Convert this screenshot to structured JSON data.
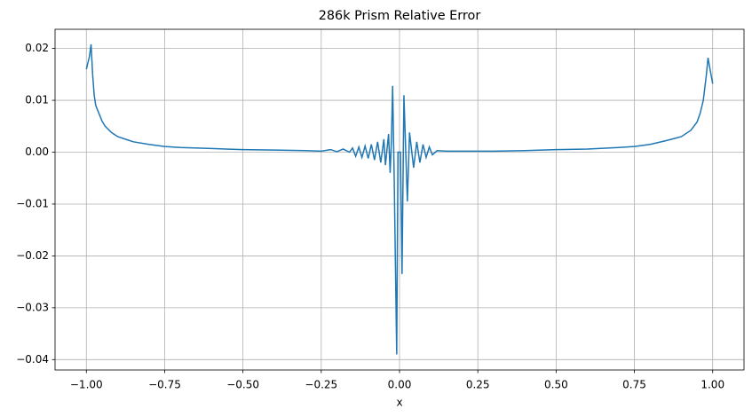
{
  "chart_data": {
    "type": "line",
    "title": "286k Prism Relative Error",
    "xlabel": "x",
    "x": [
      -1.0,
      -0.99,
      -0.985,
      -0.98,
      -0.975,
      -0.97,
      -0.96,
      -0.95,
      -0.94,
      -0.92,
      -0.9,
      -0.87,
      -0.85,
      -0.8,
      -0.75,
      -0.7,
      -0.6,
      -0.5,
      -0.4,
      -0.3,
      -0.25,
      -0.22,
      -0.2,
      -0.18,
      -0.16,
      -0.15,
      -0.14,
      -0.13,
      -0.12,
      -0.11,
      -0.1,
      -0.09,
      -0.08,
      -0.07,
      -0.06,
      -0.05,
      -0.045,
      -0.035,
      -0.03,
      -0.026,
      -0.022,
      -0.017,
      -0.009,
      -0.005,
      0.003,
      0.008,
      0.014,
      0.025,
      0.032,
      0.045,
      0.055,
      0.065,
      0.075,
      0.085,
      0.095,
      0.105,
      0.12,
      0.15,
      0.2,
      0.25,
      0.3,
      0.4,
      0.5,
      0.6,
      0.7,
      0.75,
      0.8,
      0.85,
      0.9,
      0.93,
      0.95,
      0.96,
      0.97,
      0.98,
      0.985,
      0.99,
      1.0
    ],
    "series": [
      {
        "color": "#1f77b4",
        "values": [
          0.016,
          0.0185,
          0.0208,
          0.015,
          0.011,
          0.009,
          0.0075,
          0.006,
          0.005,
          0.0038,
          0.003,
          0.0024,
          0.002,
          0.0015,
          0.0011,
          0.0009,
          0.0007,
          0.0005,
          0.0004,
          0.0003,
          0.0002,
          0.0005,
          0.0001,
          0.0006,
          0.0,
          0.0008,
          -0.0008,
          0.001,
          -0.001,
          0.0012,
          -0.0012,
          0.0015,
          -0.0015,
          0.002,
          -0.002,
          0.0025,
          -0.0025,
          0.0035,
          -0.004,
          0.002,
          0.0128,
          -0.005,
          -0.039,
          0.0,
          0.0,
          -0.0235,
          0.011,
          -0.0095,
          0.0038,
          -0.003,
          0.002,
          -0.002,
          0.0015,
          -0.001,
          0.001,
          -0.0005,
          0.0003,
          0.0002,
          0.0002,
          0.0002,
          0.0002,
          0.0003,
          0.0005,
          0.0006,
          0.0009,
          0.0011,
          0.0015,
          0.0022,
          0.003,
          0.0042,
          0.0058,
          0.0075,
          0.01,
          0.015,
          0.0182,
          0.0165,
          0.0132
        ]
      }
    ],
    "xlim": [
      -1.1,
      1.1
    ],
    "ylim": [
      -0.042,
      0.0237
    ],
    "xticks": [
      {
        "value": -1.0,
        "label": "−1.00"
      },
      {
        "value": -0.75,
        "label": "−0.75"
      },
      {
        "value": -0.5,
        "label": "−0.50"
      },
      {
        "value": -0.25,
        "label": "−0.25"
      },
      {
        "value": 0,
        "label": "0.00"
      },
      {
        "value": 0.25,
        "label": "0.25"
      },
      {
        "value": 0.5,
        "label": "0.50"
      },
      {
        "value": 0.75,
        "label": "0.75"
      },
      {
        "value": 1.0,
        "label": "1.00"
      }
    ],
    "yticks": [
      {
        "value": -0.04,
        "label": "−0.04"
      },
      {
        "value": -0.03,
        "label": "−0.03"
      },
      {
        "value": -0.02,
        "label": "−0.02"
      },
      {
        "value": -0.01,
        "label": "−0.01"
      },
      {
        "value": 0,
        "label": "0.00"
      },
      {
        "value": 0.01,
        "label": "0.01"
      },
      {
        "value": 0.02,
        "label": "0.02"
      }
    ],
    "grid": true
  }
}
